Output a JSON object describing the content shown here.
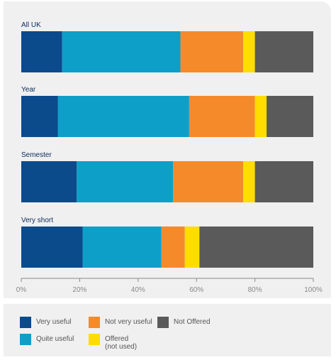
{
  "chart_data": {
    "type": "bar",
    "orientation": "horizontal",
    "stacked": true,
    "categories": [
      "All UK",
      "Year",
      "Semester",
      "Very short"
    ],
    "series": [
      {
        "name": "Very useful",
        "color": "#0b4a8b",
        "values": [
          14,
          12.5,
          19,
          21
        ]
      },
      {
        "name": "Quite useful",
        "color": "#0e9fc9",
        "values": [
          40.5,
          45,
          33,
          27
        ]
      },
      {
        "name": "Not very useful",
        "color": "#f58a2a",
        "values": [
          21.5,
          22.5,
          24,
          8
        ]
      },
      {
        "name": "Offered",
        "sublabel": "(not used)",
        "color": "#ffdd00",
        "values": [
          4,
          4,
          4,
          5
        ]
      },
      {
        "name": "Not Offered",
        "color": "#5a5a5a",
        "values": [
          20,
          16,
          20,
          39
        ]
      }
    ],
    "xlim": [
      0,
      100
    ],
    "xticks": [
      "0%",
      "20%",
      "40%",
      "60%",
      "80%",
      "100%"
    ],
    "xtick_values": [
      0,
      20,
      40,
      60,
      80,
      100
    ],
    "legend_placement": "bottom",
    "grid": false
  },
  "colors": {
    "panel_background": "#f0f0f0",
    "category_label": "#0b2a5b",
    "axis_line": "#888888",
    "tick_label": "#888888"
  }
}
